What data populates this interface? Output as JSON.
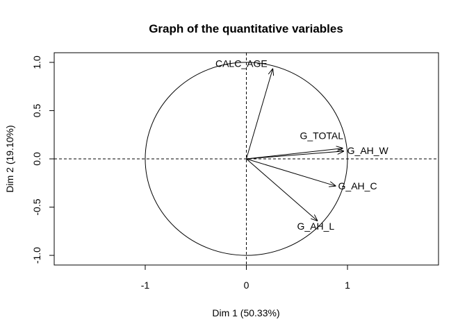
{
  "chart_data": {
    "type": "scatter",
    "title": "Graph of the quantitative variables",
    "xlabel": "Dim 1 (50.33%)",
    "ylabel": "Dim 2 (19.10%)",
    "xlim": [
      -1.9,
      1.9
    ],
    "ylim": [
      -1.1,
      1.1
    ],
    "x_ticks": [
      -1,
      0,
      1
    ],
    "y_ticks": [
      -1.0,
      -0.5,
      0.0,
      0.5,
      1.0
    ],
    "x_tick_labels": [
      "-1",
      "0",
      "1"
    ],
    "y_tick_labels": [
      "-1.0",
      "-0.5",
      "0.0",
      "0.5",
      "1.0"
    ],
    "unit_circle": true,
    "reference_lines": [
      0
    ],
    "grid": false,
    "variables": [
      {
        "name": "CALC_AGE",
        "x": 0.26,
        "y": 0.93
      },
      {
        "name": "G_TOTAL",
        "x": 0.95,
        "y": 0.11
      },
      {
        "name": "G_AH_W",
        "x": 0.96,
        "y": 0.08
      },
      {
        "name": "G_AH_C",
        "x": 0.88,
        "y": -0.28
      },
      {
        "name": "G_AH_L",
        "x": 0.7,
        "y": -0.64
      }
    ],
    "colors": {
      "arrows": "#000000",
      "circle": "#000000",
      "background": "#ffffff"
    }
  }
}
